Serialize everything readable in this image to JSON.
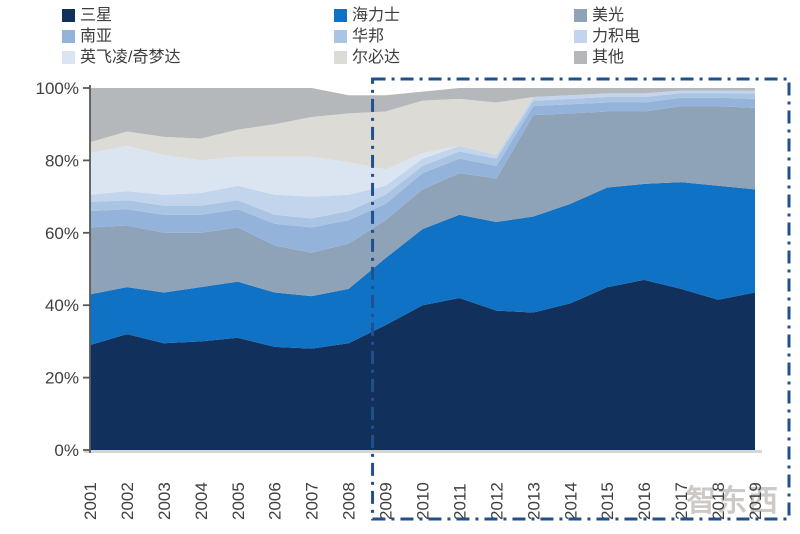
{
  "watermark": "智东西",
  "chart_data": {
    "type": "area",
    "stacked": true,
    "title": "",
    "xlabel": "",
    "ylabel": "",
    "unit": "%",
    "ylim": [
      0,
      100
    ],
    "yticks": [
      "0%",
      "20%",
      "40%",
      "60%",
      "80%",
      "100%"
    ],
    "grid": false,
    "legend_position": "top",
    "categories": [
      "2001",
      "2002",
      "2003",
      "2004",
      "2005",
      "2006",
      "2007",
      "2008",
      "2009",
      "2010",
      "2011",
      "2012",
      "2013",
      "2014",
      "2015",
      "2016",
      "2017",
      "2018",
      "2019"
    ],
    "series": [
      {
        "id": "samsung",
        "name": "三星",
        "color": "#11305c",
        "values": [
          29,
          32,
          29.5,
          30,
          31,
          28.5,
          28,
          29.5,
          34.5,
          40,
          42,
          38.5,
          38,
          40.5,
          45,
          47,
          44.5,
          41.5,
          43.5
        ]
      },
      {
        "id": "sk-hynix",
        "name": "海力士",
        "color": "#0f72c4",
        "values": [
          14,
          13,
          14,
          15,
          15.5,
          15,
          14.5,
          15,
          18.5,
          21,
          23,
          24.5,
          26.5,
          27.5,
          27.5,
          26.5,
          29.5,
          31.5,
          28.5
        ]
      },
      {
        "id": "micron",
        "name": "美光",
        "color": "#8fa3b8",
        "values": [
          18.5,
          17,
          16.5,
          15,
          15,
          13,
          12,
          12.5,
          10.5,
          11,
          11.5,
          12,
          28,
          25,
          21,
          20,
          21,
          22,
          22.5
        ]
      },
      {
        "id": "nanya",
        "name": "南亚",
        "color": "#94b3da",
        "values": [
          4.5,
          4.5,
          5,
          5,
          5,
          6,
          7,
          6.5,
          4.5,
          4.5,
          4,
          3.5,
          2.5,
          2.5,
          2.5,
          2.5,
          2.3,
          2.3,
          2.5
        ]
      },
      {
        "id": "winbond",
        "name": "华邦",
        "color": "#aac4e4",
        "values": [
          2.5,
          2.5,
          2.5,
          2.5,
          2.5,
          2.5,
          2.5,
          2.5,
          2.5,
          2,
          2,
          2,
          1.5,
          1.5,
          1.5,
          1.5,
          1.3,
          1.3,
          1.5
        ]
      },
      {
        "id": "powerchip",
        "name": "力积电",
        "color": "#c2d5ec",
        "values": [
          2,
          2.5,
          3,
          3.5,
          4,
          5.5,
          6,
          4.5,
          2.5,
          2,
          1.5,
          1,
          1,
          1,
          1,
          1,
          0.7,
          0.7,
          0.8
        ]
      },
      {
        "id": "infineon-qimonda",
        "name": "英飞凌/奇梦达",
        "color": "#dbe5f2",
        "values": [
          11.5,
          12.5,
          11,
          9,
          8,
          10.5,
          11,
          9,
          4.5,
          1.5,
          0,
          0,
          0,
          0,
          0,
          0,
          0,
          0,
          0
        ]
      },
      {
        "id": "elpida",
        "name": "尔必达",
        "color": "#dcdbd6",
        "values": [
          3,
          4,
          5,
          6,
          7.5,
          9,
          11,
          13.5,
          16,
          14.5,
          13,
          14.5,
          0,
          0,
          0,
          0,
          0,
          0,
          0
        ]
      },
      {
        "id": "others",
        "name": "其他",
        "color": "#b5b8bb",
        "values": [
          15,
          12,
          13.5,
          14,
          11.5,
          10,
          8,
          5,
          4.5,
          2.5,
          3,
          4,
          2.5,
          2,
          1.5,
          1.5,
          0.7,
          0.7,
          0.7
        ]
      }
    ],
    "highlight_box": {
      "from_year": "2009",
      "to_year": "2019",
      "style": "dash-dot",
      "color": "#21508e"
    },
    "axis_color": "#595959",
    "label_color": "#404040",
    "bottom_axis_color": "#d6d6d6"
  }
}
